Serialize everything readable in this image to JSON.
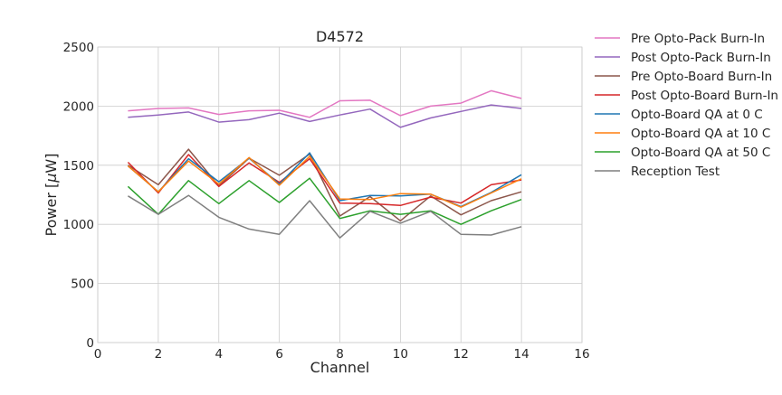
{
  "chart_data": {
    "type": "line",
    "title": "D4572",
    "xlabel": "Channel",
    "ylabel": "Power [",
    "ylabel_symbol": "μ",
    "ylabel_unit": "W]",
    "xlim": [
      0,
      16
    ],
    "ylim": [
      0,
      2500
    ],
    "xticks": [
      0,
      2,
      4,
      6,
      8,
      10,
      12,
      14,
      16
    ],
    "yticks": [
      0,
      500,
      1000,
      1500,
      2000,
      2500
    ],
    "grid": true,
    "legend_position": "outside-right",
    "x": [
      1,
      2,
      3,
      4,
      5,
      6,
      7,
      8,
      9,
      10,
      11,
      12,
      13,
      14
    ],
    "series": [
      {
        "name": "Pre Opto-Pack Burn-In",
        "color": "#e377c2",
        "values": [
          1960,
          1980,
          1985,
          1930,
          1960,
          1965,
          1905,
          2045,
          2050,
          1920,
          2000,
          2025,
          2130,
          2065
        ]
      },
      {
        "name": "Post Opto-Pack Burn-In",
        "color": "#9467bd",
        "values": [
          1905,
          1925,
          1950,
          1865,
          1885,
          1940,
          1870,
          1925,
          1975,
          1820,
          1900,
          1955,
          2010,
          1980
        ]
      },
      {
        "name": "Pre Opto-Board Burn-In",
        "color": "#8c564b",
        "values": [
          1500,
          1335,
          1635,
          1325,
          1560,
          1415,
          1595,
          1070,
          1235,
          1030,
          1240,
          1080,
          1200,
          1275
        ]
      },
      {
        "name": "Post Opto-Board Burn-In",
        "color": "#d62728",
        "values": [
          1525,
          1265,
          1590,
          1320,
          1520,
          1355,
          1555,
          1180,
          1175,
          1160,
          1230,
          1180,
          1335,
          1375
        ]
      },
      {
        "name": "Opto-Board QA at 0 C",
        "color": "#1f77b4",
        "values": [
          1495,
          1275,
          1555,
          1360,
          1560,
          1340,
          1605,
          1200,
          1245,
          1240,
          1255,
          1150,
          1270,
          1420
        ]
      },
      {
        "name": "Opto-Board QA at 10 C",
        "color": "#ff7f0e",
        "values": [
          1495,
          1275,
          1535,
          1340,
          1565,
          1330,
          1575,
          1215,
          1210,
          1260,
          1255,
          1145,
          1265,
          1385
        ]
      },
      {
        "name": "Opto-Board QA at 50 C",
        "color": "#2ca02c",
        "values": [
          1320,
          1085,
          1370,
          1175,
          1370,
          1185,
          1390,
          1050,
          1115,
          1085,
          1115,
          1000,
          1115,
          1210
        ]
      },
      {
        "name": "Reception Test",
        "color": "#7f7f7f",
        "values": [
          1240,
          1085,
          1245,
          1060,
          960,
          915,
          1200,
          885,
          1110,
          1010,
          1110,
          915,
          910,
          980
        ]
      }
    ]
  }
}
